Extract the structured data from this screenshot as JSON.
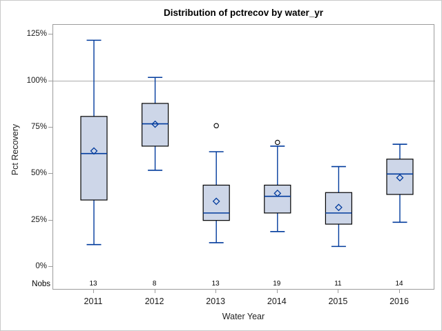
{
  "title": "Distribution of pctrecov by water_yr",
  "y_axis": {
    "label": "Pct Recovery",
    "tick_labels": [
      "0%",
      "25%",
      "50%",
      "75%",
      "100%",
      "125%"
    ],
    "tick_values": [
      0,
      25,
      50,
      75,
      100,
      125
    ]
  },
  "x_axis": {
    "label": "Water Year",
    "categories": [
      "2011",
      "2012",
      "2013",
      "2014",
      "2015",
      "2016"
    ]
  },
  "nobs": {
    "label": "Nobs",
    "values": [
      "13",
      "8",
      "13",
      "19",
      "11",
      "14"
    ]
  },
  "colors": {
    "box_fill": "#cdd6e8",
    "box_stroke": "#000000",
    "whisker": "#003a9c",
    "median": "#003a9c",
    "mean_marker": "#003a9c",
    "outlier_stroke": "#000000",
    "reference_line": "#a8a8a8",
    "frame": "#9b9b9b"
  },
  "chart_data": {
    "type": "boxplot",
    "title": "Distribution of pctrecov by water_yr",
    "xlabel": "Water Year",
    "ylabel": "Pct Recovery",
    "ylim": [
      0,
      125
    ],
    "yticks_percent": [
      0,
      25,
      50,
      75,
      100,
      125
    ],
    "reference_line_y": 100,
    "grid": false,
    "categories": [
      "2011",
      "2012",
      "2013",
      "2014",
      "2015",
      "2016"
    ],
    "series": [
      {
        "category": "2011",
        "nobs": 13,
        "whisker_low": 12,
        "q1": 36,
        "median": 61,
        "q3": 81,
        "whisker_high": 122,
        "mean": 62.4,
        "outliers": []
      },
      {
        "category": "2012",
        "nobs": 8,
        "whisker_low": 52,
        "q1": 65,
        "median": 77,
        "q3": 88,
        "whisker_high": 102,
        "mean": 76.8,
        "outliers": []
      },
      {
        "category": "2013",
        "nobs": 13,
        "whisker_low": 13,
        "q1": 25,
        "median": 29,
        "q3": 44,
        "whisker_high": 62,
        "mean": 35.3,
        "outliers": [
          76
        ]
      },
      {
        "category": "2014",
        "nobs": 19,
        "whisker_low": 19,
        "q1": 29,
        "median": 38,
        "q3": 44,
        "whisker_high": 65,
        "mean": 39.6,
        "outliers": [
          67
        ]
      },
      {
        "category": "2015",
        "nobs": 11,
        "whisker_low": 11,
        "q1": 23,
        "median": 29,
        "q3": 40,
        "whisker_high": 54,
        "mean": 32.0,
        "outliers": []
      },
      {
        "category": "2016",
        "nobs": 14,
        "whisker_low": 24,
        "q1": 39,
        "median": 50,
        "q3": 58,
        "whisker_high": 66,
        "mean": 48.0,
        "outliers": []
      }
    ]
  }
}
